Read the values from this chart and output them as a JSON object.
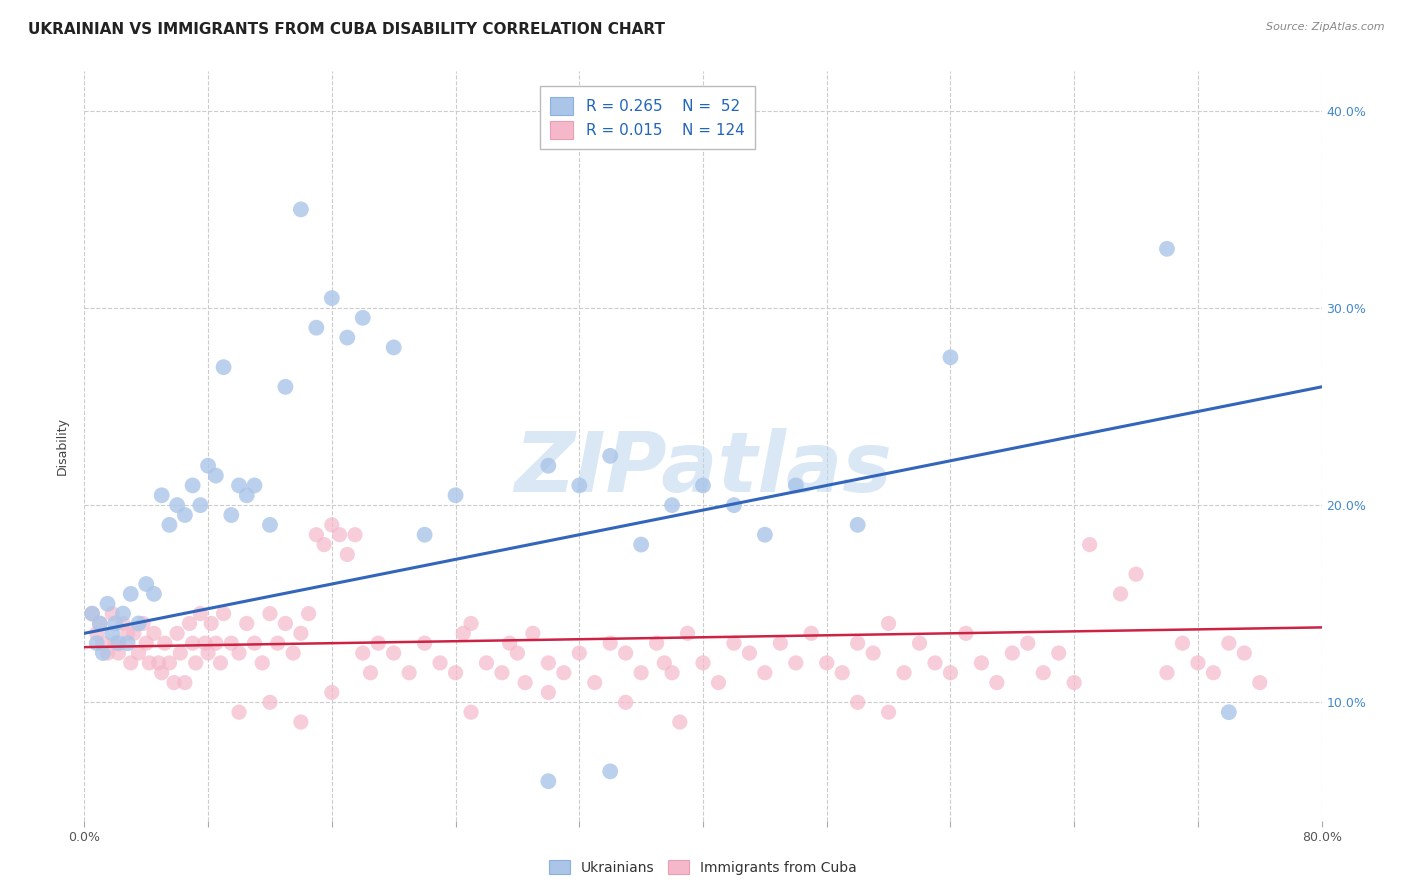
{
  "title": "UKRAINIAN VS IMMIGRANTS FROM CUBA DISABILITY CORRELATION CHART",
  "source": "Source: ZipAtlas.com",
  "ylabel": "Disability",
  "legend_labels": [
    "Ukrainians",
    "Immigrants from Cuba"
  ],
  "r_ukrainian": 0.265,
  "n_ukrainian": 52,
  "r_cuba": 0.015,
  "n_cuba": 124,
  "color_ukrainian": "#aac5e8",
  "color_cuba": "#f5b8ca",
  "line_color_ukrainian": "#3366bb",
  "line_color_cuba": "#cc2244",
  "watermark": "ZIPatlas",
  "background_color": "#ffffff",
  "grid_color": "#cccccc",
  "xlim": [
    0.0,
    80.0
  ],
  "ylim": [
    4.0,
    42.0
  ],
  "ukr_line": [
    0.0,
    13.5,
    80.0,
    26.0
  ],
  "cuba_line": [
    0.0,
    12.8,
    80.0,
    13.8
  ],
  "ukrainian_scatter": [
    [
      0.5,
      14.5
    ],
    [
      0.8,
      13.0
    ],
    [
      1.0,
      14.0
    ],
    [
      1.2,
      12.5
    ],
    [
      1.5,
      15.0
    ],
    [
      1.8,
      13.5
    ],
    [
      2.0,
      14.0
    ],
    [
      2.2,
      13.0
    ],
    [
      2.5,
      14.5
    ],
    [
      2.8,
      13.0
    ],
    [
      3.0,
      15.5
    ],
    [
      3.5,
      14.0
    ],
    [
      4.0,
      16.0
    ],
    [
      4.5,
      15.5
    ],
    [
      5.0,
      20.5
    ],
    [
      5.5,
      19.0
    ],
    [
      6.0,
      20.0
    ],
    [
      6.5,
      19.5
    ],
    [
      7.0,
      21.0
    ],
    [
      7.5,
      20.0
    ],
    [
      8.0,
      22.0
    ],
    [
      8.5,
      21.5
    ],
    [
      9.0,
      27.0
    ],
    [
      9.5,
      19.5
    ],
    [
      10.0,
      21.0
    ],
    [
      10.5,
      20.5
    ],
    [
      11.0,
      21.0
    ],
    [
      12.0,
      19.0
    ],
    [
      13.0,
      26.0
    ],
    [
      14.0,
      35.0
    ],
    [
      15.0,
      29.0
    ],
    [
      16.0,
      30.5
    ],
    [
      17.0,
      28.5
    ],
    [
      18.0,
      29.5
    ],
    [
      20.0,
      28.0
    ],
    [
      22.0,
      18.5
    ],
    [
      24.0,
      20.5
    ],
    [
      30.0,
      22.0
    ],
    [
      32.0,
      21.0
    ],
    [
      34.0,
      22.5
    ],
    [
      36.0,
      18.0
    ],
    [
      38.0,
      20.0
    ],
    [
      40.0,
      21.0
    ],
    [
      42.0,
      20.0
    ],
    [
      44.0,
      18.5
    ],
    [
      46.0,
      21.0
    ],
    [
      50.0,
      19.0
    ],
    [
      56.0,
      27.5
    ],
    [
      70.0,
      33.0
    ],
    [
      74.0,
      9.5
    ],
    [
      30.0,
      6.0
    ],
    [
      34.0,
      6.5
    ]
  ],
  "cuba_scatter": [
    [
      0.5,
      14.5
    ],
    [
      0.8,
      13.5
    ],
    [
      1.0,
      14.0
    ],
    [
      1.2,
      13.0
    ],
    [
      1.5,
      12.5
    ],
    [
      1.8,
      14.5
    ],
    [
      2.0,
      13.0
    ],
    [
      2.2,
      12.5
    ],
    [
      2.5,
      14.0
    ],
    [
      2.8,
      13.5
    ],
    [
      3.0,
      12.0
    ],
    [
      3.2,
      13.5
    ],
    [
      3.5,
      12.5
    ],
    [
      3.8,
      14.0
    ],
    [
      4.0,
      13.0
    ],
    [
      4.2,
      12.0
    ],
    [
      4.5,
      13.5
    ],
    [
      4.8,
      12.0
    ],
    [
      5.0,
      11.5
    ],
    [
      5.2,
      13.0
    ],
    [
      5.5,
      12.0
    ],
    [
      5.8,
      11.0
    ],
    [
      6.0,
      13.5
    ],
    [
      6.2,
      12.5
    ],
    [
      6.5,
      11.0
    ],
    [
      6.8,
      14.0
    ],
    [
      7.0,
      13.0
    ],
    [
      7.2,
      12.0
    ],
    [
      7.5,
      14.5
    ],
    [
      7.8,
      13.0
    ],
    [
      8.0,
      12.5
    ],
    [
      8.2,
      14.0
    ],
    [
      8.5,
      13.0
    ],
    [
      8.8,
      12.0
    ],
    [
      9.0,
      14.5
    ],
    [
      9.5,
      13.0
    ],
    [
      10.0,
      12.5
    ],
    [
      10.5,
      14.0
    ],
    [
      11.0,
      13.0
    ],
    [
      11.5,
      12.0
    ],
    [
      12.0,
      14.5
    ],
    [
      12.5,
      13.0
    ],
    [
      13.0,
      14.0
    ],
    [
      13.5,
      12.5
    ],
    [
      14.0,
      13.5
    ],
    [
      14.5,
      14.5
    ],
    [
      15.0,
      18.5
    ],
    [
      15.5,
      18.0
    ],
    [
      16.0,
      19.0
    ],
    [
      16.5,
      18.5
    ],
    [
      17.0,
      17.5
    ],
    [
      17.5,
      18.5
    ],
    [
      18.0,
      12.5
    ],
    [
      18.5,
      11.5
    ],
    [
      19.0,
      13.0
    ],
    [
      20.0,
      12.5
    ],
    [
      21.0,
      11.5
    ],
    [
      22.0,
      13.0
    ],
    [
      23.0,
      12.0
    ],
    [
      24.0,
      11.5
    ],
    [
      24.5,
      13.5
    ],
    [
      25.0,
      14.0
    ],
    [
      26.0,
      12.0
    ],
    [
      27.0,
      11.5
    ],
    [
      27.5,
      13.0
    ],
    [
      28.0,
      12.5
    ],
    [
      28.5,
      11.0
    ],
    [
      29.0,
      13.5
    ],
    [
      30.0,
      12.0
    ],
    [
      31.0,
      11.5
    ],
    [
      32.0,
      12.5
    ],
    [
      33.0,
      11.0
    ],
    [
      34.0,
      13.0
    ],
    [
      35.0,
      12.5
    ],
    [
      36.0,
      11.5
    ],
    [
      37.0,
      13.0
    ],
    [
      37.5,
      12.0
    ],
    [
      38.0,
      11.5
    ],
    [
      39.0,
      13.5
    ],
    [
      40.0,
      12.0
    ],
    [
      41.0,
      11.0
    ],
    [
      42.0,
      13.0
    ],
    [
      43.0,
      12.5
    ],
    [
      44.0,
      11.5
    ],
    [
      45.0,
      13.0
    ],
    [
      46.0,
      12.0
    ],
    [
      47.0,
      13.5
    ],
    [
      48.0,
      12.0
    ],
    [
      49.0,
      11.5
    ],
    [
      50.0,
      13.0
    ],
    [
      51.0,
      12.5
    ],
    [
      52.0,
      14.0
    ],
    [
      53.0,
      11.5
    ],
    [
      54.0,
      13.0
    ],
    [
      55.0,
      12.0
    ],
    [
      56.0,
      11.5
    ],
    [
      57.0,
      13.5
    ],
    [
      58.0,
      12.0
    ],
    [
      59.0,
      11.0
    ],
    [
      60.0,
      12.5
    ],
    [
      61.0,
      13.0
    ],
    [
      62.0,
      11.5
    ],
    [
      63.0,
      12.5
    ],
    [
      64.0,
      11.0
    ],
    [
      65.0,
      18.0
    ],
    [
      67.0,
      15.5
    ],
    [
      68.0,
      16.5
    ],
    [
      70.0,
      11.5
    ],
    [
      71.0,
      13.0
    ],
    [
      72.0,
      12.0
    ],
    [
      73.0,
      11.5
    ],
    [
      74.0,
      13.0
    ],
    [
      75.0,
      12.5
    ],
    [
      76.0,
      11.0
    ],
    [
      10.0,
      9.5
    ],
    [
      12.0,
      10.0
    ],
    [
      14.0,
      9.0
    ],
    [
      16.0,
      10.5
    ],
    [
      25.0,
      9.5
    ],
    [
      30.0,
      10.5
    ],
    [
      35.0,
      10.0
    ],
    [
      38.5,
      9.0
    ],
    [
      50.0,
      10.0
    ],
    [
      52.0,
      9.5
    ]
  ],
  "title_fontsize": 11,
  "tick_fontsize": 9,
  "legend_fontsize": 11,
  "axis_label_fontsize": 9
}
